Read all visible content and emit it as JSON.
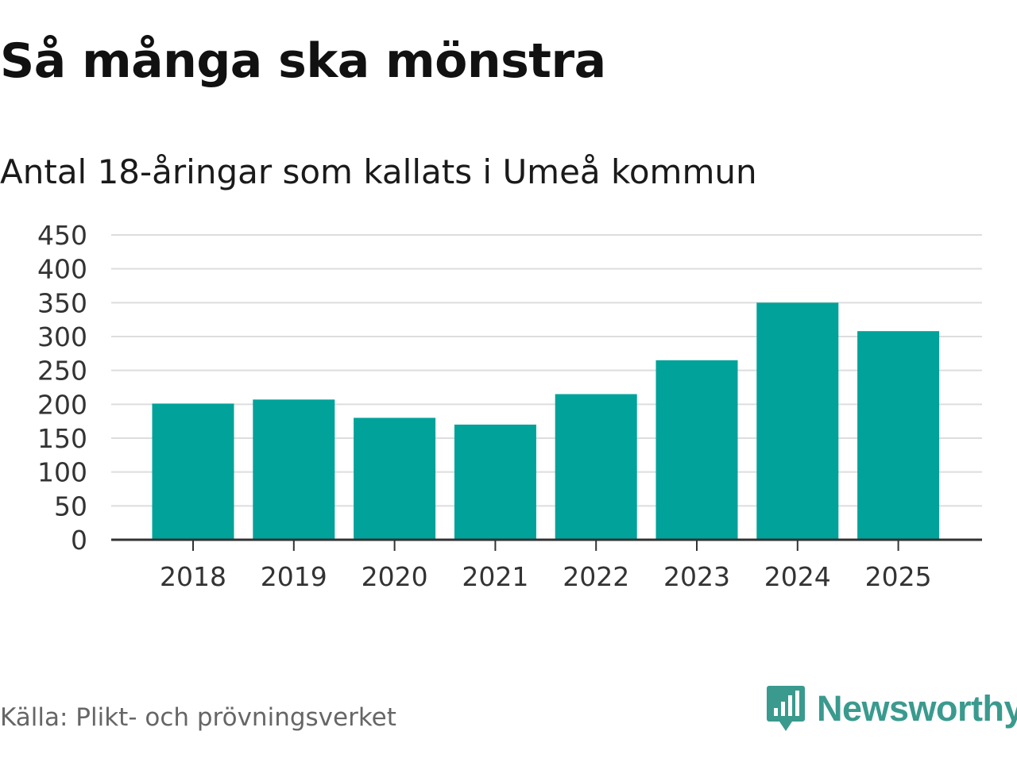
{
  "header": {
    "title": "Så många ska mönstra",
    "subtitle": "Antal 18-åringar som kallats i Umeå kommun"
  },
  "footer": {
    "source": "Källa: Plikt- och prövningsverket",
    "brand": "Newsworthy",
    "brand_icon": "newsworthy-logo-icon"
  },
  "colors": {
    "bar": "#00a29a",
    "grid": "#dddddd",
    "axis": "#333333",
    "brand": "#3a9a8e"
  },
  "chart_data": {
    "type": "bar",
    "title": "Så många ska mönstra",
    "subtitle": "Antal 18-åringar som kallats i Umeå kommun",
    "xlabel": "",
    "ylabel": "",
    "categories": [
      "2018",
      "2019",
      "2020",
      "2021",
      "2022",
      "2023",
      "2024",
      "2025"
    ],
    "values": [
      201,
      207,
      180,
      170,
      215,
      265,
      350,
      308
    ],
    "ylim": [
      0,
      450
    ],
    "yticks": [
      0,
      50,
      100,
      150,
      200,
      250,
      300,
      350,
      400,
      450
    ],
    "grid": true,
    "legend": "none"
  }
}
